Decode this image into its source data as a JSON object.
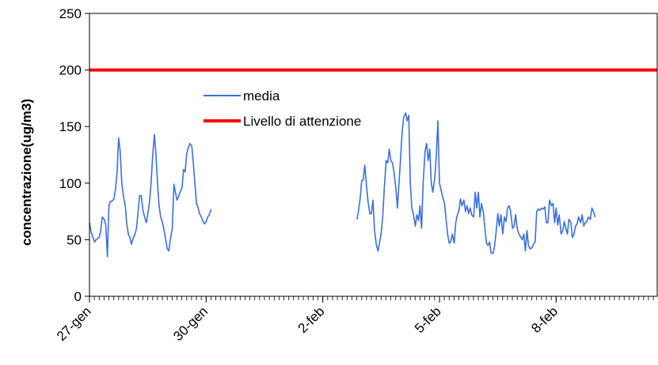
{
  "chart_data": {
    "type": "line",
    "title": "",
    "xlabel": "",
    "ylabel": "concentrazione(ug/m3)",
    "ylim": [
      0,
      250
    ],
    "y_ticks": [
      "0",
      "50",
      "100",
      "150",
      "200",
      "250"
    ],
    "x_range_days": [
      0,
      14.6
    ],
    "x_tick_labels": [
      {
        "label": "27-gen",
        "day": 0
      },
      {
        "label": "30-gen",
        "day": 3
      },
      {
        "label": "2-feb",
        "day": 6
      },
      {
        "label": "5-feb",
        "day": 9
      },
      {
        "label": "8-feb",
        "day": 12
      }
    ],
    "grid": false,
    "legend": {
      "position": "center-left",
      "entries": [
        "media",
        "Livello di attenzione"
      ]
    },
    "series": [
      {
        "name": "media",
        "color": "#3b6fe0",
        "segments": [
          [
            [
              0.0,
              65
            ],
            [
              0.04,
              57
            ],
            [
              0.08,
              53
            ],
            [
              0.13,
              48
            ],
            [
              0.17,
              50
            ],
            [
              0.21,
              51
            ],
            [
              0.25,
              52
            ],
            [
              0.29,
              58
            ],
            [
              0.33,
              70
            ],
            [
              0.38,
              68
            ],
            [
              0.42,
              63
            ],
            [
              0.46,
              35
            ],
            [
              0.5,
              80
            ],
            [
              0.54,
              84
            ],
            [
              0.58,
              84
            ],
            [
              0.63,
              86
            ],
            [
              0.67,
              95
            ],
            [
              0.71,
              110
            ],
            [
              0.75,
              140
            ],
            [
              0.79,
              128
            ],
            [
              0.83,
              100
            ],
            [
              0.88,
              87
            ],
            [
              0.92,
              80
            ],
            [
              0.96,
              64
            ],
            [
              1.0,
              55
            ],
            [
              1.04,
              52
            ],
            [
              1.08,
              46
            ],
            [
              1.13,
              52
            ],
            [
              1.17,
              55
            ],
            [
              1.21,
              60
            ],
            [
              1.25,
              75
            ],
            [
              1.29,
              89
            ],
            [
              1.33,
              89
            ],
            [
              1.38,
              75
            ],
            [
              1.42,
              70
            ],
            [
              1.46,
              65
            ],
            [
              1.5,
              73
            ],
            [
              1.54,
              82
            ],
            [
              1.58,
              98
            ],
            [
              1.63,
              126
            ],
            [
              1.67,
              143
            ],
            [
              1.71,
              125
            ],
            [
              1.75,
              100
            ],
            [
              1.79,
              80
            ],
            [
              1.83,
              70
            ],
            [
              1.88,
              65
            ],
            [
              1.92,
              58
            ],
            [
              1.96,
              50
            ],
            [
              2.0,
              42
            ],
            [
              2.04,
              40
            ],
            [
              2.08,
              50
            ],
            [
              2.13,
              60
            ],
            [
              2.17,
              99
            ],
            [
              2.21,
              92
            ],
            [
              2.25,
              85
            ],
            [
              2.29,
              88
            ],
            [
              2.33,
              92
            ],
            [
              2.38,
              96
            ],
            [
              2.42,
              112
            ],
            [
              2.46,
              110
            ],
            [
              2.5,
              126
            ],
            [
              2.54,
              131
            ],
            [
              2.58,
              135
            ],
            [
              2.63,
              133
            ],
            [
              2.67,
              118
            ],
            [
              2.71,
              100
            ],
            [
              2.75,
              82
            ],
            [
              2.79,
              79
            ],
            [
              2.83,
              73
            ],
            [
              2.88,
              70
            ],
            [
              2.92,
              66
            ],
            [
              2.96,
              64
            ],
            [
              3.0,
              66
            ],
            [
              3.04,
              70
            ],
            [
              3.08,
              72
            ],
            [
              3.13,
              77
            ]
          ],
          [
            [
              6.88,
              68
            ],
            [
              6.92,
              76
            ],
            [
              6.96,
              86
            ],
            [
              7.0,
              102
            ],
            [
              7.04,
              103
            ],
            [
              7.08,
              116
            ],
            [
              7.13,
              95
            ],
            [
              7.17,
              82
            ],
            [
              7.21,
              73
            ],
            [
              7.25,
              73
            ],
            [
              7.29,
              85
            ],
            [
              7.33,
              58
            ],
            [
              7.38,
              45
            ],
            [
              7.42,
              40
            ],
            [
              7.46,
              48
            ],
            [
              7.5,
              55
            ],
            [
              7.54,
              70
            ],
            [
              7.58,
              95
            ],
            [
              7.63,
              120
            ],
            [
              7.67,
              118
            ],
            [
              7.71,
              130
            ],
            [
              7.75,
              120
            ],
            [
              7.79,
              118
            ],
            [
              7.83,
              110
            ],
            [
              7.88,
              95
            ],
            [
              7.92,
              78
            ],
            [
              7.96,
              100
            ],
            [
              8.0,
              122
            ],
            [
              8.04,
              145
            ],
            [
              8.08,
              158
            ],
            [
              8.13,
              162
            ],
            [
              8.17,
              155
            ],
            [
              8.21,
              160
            ],
            [
              8.25,
              100
            ],
            [
              8.29,
              78
            ],
            [
              8.33,
              73
            ],
            [
              8.38,
              62
            ],
            [
              8.42,
              72
            ],
            [
              8.46,
              67
            ],
            [
              8.5,
              80
            ],
            [
              8.54,
              60
            ],
            [
              8.58,
              100
            ],
            [
              8.63,
              128
            ],
            [
              8.67,
              135
            ],
            [
              8.71,
              120
            ],
            [
              8.75,
              130
            ],
            [
              8.79,
              100
            ],
            [
              8.83,
              92
            ],
            [
              8.88,
              105
            ],
            [
              8.92,
              125
            ],
            [
              8.96,
              155
            ],
            [
              9.0,
              100
            ],
            [
              9.04,
              94
            ],
            [
              9.08,
              88
            ],
            [
              9.13,
              82
            ],
            [
              9.17,
              68
            ],
            [
              9.21,
              55
            ],
            [
              9.25,
              47
            ],
            [
              9.29,
              48
            ],
            [
              9.33,
              55
            ],
            [
              9.38,
              47
            ],
            [
              9.42,
              65
            ],
            [
              9.46,
              72
            ],
            [
              9.5,
              75
            ],
            [
              9.54,
              86
            ],
            [
              9.58,
              80
            ],
            [
              9.63,
              85
            ],
            [
              9.67,
              75
            ],
            [
              9.71,
              80
            ],
            [
              9.75,
              73
            ],
            [
              9.79,
              78
            ],
            [
              9.83,
              72
            ],
            [
              9.88,
              70
            ],
            [
              9.92,
              92
            ],
            [
              9.96,
              78
            ],
            [
              10.0,
              92
            ],
            [
              10.04,
              70
            ],
            [
              10.08,
              82
            ],
            [
              10.13,
              74
            ],
            [
              10.17,
              60
            ],
            [
              10.21,
              47
            ],
            [
              10.25,
              45
            ],
            [
              10.29,
              48
            ],
            [
              10.33,
              38
            ],
            [
              10.38,
              38
            ],
            [
              10.42,
              45
            ],
            [
              10.46,
              58
            ],
            [
              10.5,
              73
            ],
            [
              10.54,
              62
            ],
            [
              10.58,
              72
            ],
            [
              10.63,
              55
            ],
            [
              10.67,
              70
            ],
            [
              10.71,
              66
            ],
            [
              10.75,
              78
            ],
            [
              10.79,
              80
            ],
            [
              10.83,
              75
            ],
            [
              10.88,
              60
            ],
            [
              10.92,
              62
            ],
            [
              10.96,
              72
            ],
            [
              11.0,
              60
            ],
            [
              11.04,
              55
            ],
            [
              11.08,
              53
            ],
            [
              11.13,
              50
            ],
            [
              11.17,
              55
            ],
            [
              11.21,
              40
            ],
            [
              11.25,
              58
            ],
            [
              11.29,
              45
            ],
            [
              11.33,
              42
            ],
            [
              11.38,
              43
            ],
            [
              11.42,
              46
            ],
            [
              11.46,
              48
            ],
            [
              11.5,
              75
            ],
            [
              11.54,
              77
            ],
            [
              11.58,
              76
            ],
            [
              11.63,
              78
            ],
            [
              11.67,
              77
            ],
            [
              11.71,
              79
            ],
            [
              11.75,
              65
            ],
            [
              11.79,
              65
            ],
            [
              11.83,
              85
            ],
            [
              11.88,
              80
            ],
            [
              11.92,
              82
            ],
            [
              11.96,
              65
            ],
            [
              12.0,
              78
            ],
            [
              12.04,
              63
            ],
            [
              12.08,
              72
            ],
            [
              12.13,
              55
            ],
            [
              12.17,
              58
            ],
            [
              12.21,
              66
            ],
            [
              12.25,
              60
            ],
            [
              12.29,
              55
            ],
            [
              12.33,
              68
            ],
            [
              12.38,
              65
            ],
            [
              12.42,
              52
            ],
            [
              12.46,
              55
            ],
            [
              12.5,
              62
            ],
            [
              12.54,
              64
            ],
            [
              12.58,
              70
            ],
            [
              12.63,
              65
            ],
            [
              12.67,
              72
            ],
            [
              12.71,
              62
            ],
            [
              12.75,
              65
            ],
            [
              12.79,
              66
            ],
            [
              12.83,
              70
            ],
            [
              12.88,
              68
            ],
            [
              12.92,
              78
            ],
            [
              12.96,
              75
            ],
            [
              13.0,
              70
            ]
          ]
        ]
      },
      {
        "name": "Livello di attenzione",
        "color": "#ff0000",
        "constant": 200
      }
    ]
  }
}
